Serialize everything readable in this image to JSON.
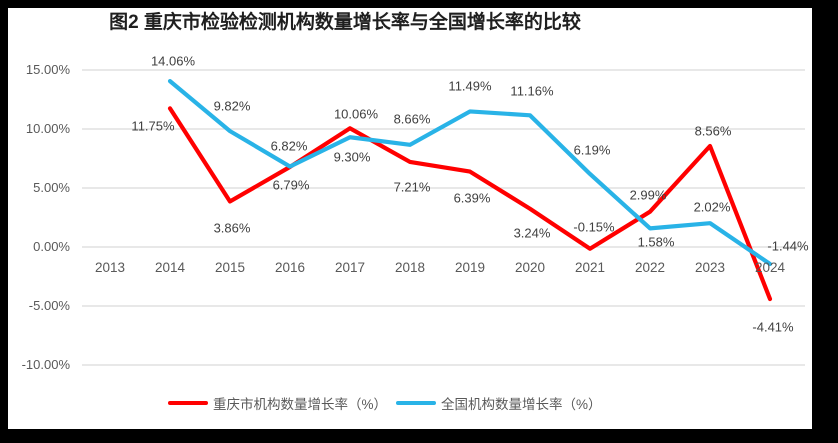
{
  "chart_data": {
    "type": "line",
    "title": "图2 重庆市检验检测机构数量增长率与全国增长率的比较",
    "categories": [
      "2013",
      "2014",
      "2015",
      "2016",
      "2017",
      "2018",
      "2019",
      "2020",
      "2021",
      "2022",
      "2023",
      "2024"
    ],
    "series": [
      {
        "name": "重庆市机构数量增长率（%）",
        "color": "#FF0000",
        "values": [
          null,
          11.75,
          3.86,
          6.79,
          10.06,
          7.21,
          6.39,
          3.24,
          -0.15,
          2.99,
          8.56,
          -4.41
        ],
        "labels": [
          null,
          "11.75%",
          "3.86%",
          "6.79%",
          "10.06%",
          "7.21%",
          "6.39%",
          "3.24%",
          "-0.15%",
          "2.99%",
          "8.56%",
          "-4.41%"
        ],
        "label_offsets": [
          null,
          [
            -17,
            18
          ],
          [
            2,
            27
          ],
          [
            1,
            18
          ],
          [
            6,
            -14
          ],
          [
            2,
            25
          ],
          [
            2,
            26
          ],
          [
            2,
            24
          ],
          [
            4,
            -22
          ],
          [
            -2,
            -17
          ],
          [
            3,
            -15
          ],
          [
            3,
            28
          ]
        ]
      },
      {
        "name": "全国机构数量增长率（%）",
        "color": "#29B3E7",
        "values": [
          null,
          14.06,
          9.82,
          6.82,
          9.3,
          8.66,
          11.49,
          11.16,
          6.19,
          1.58,
          2.02,
          -1.44
        ],
        "labels": [
          null,
          "14.06%",
          "9.82%",
          "6.82%",
          "9.30%",
          "8.66%",
          "11.49%",
          "11.16%",
          "6.19%",
          "1.58%",
          "2.02%",
          "-1.44%"
        ],
        "label_offsets": [
          null,
          [
            3,
            -20
          ],
          [
            2,
            -25
          ],
          [
            -1,
            -21
          ],
          [
            2,
            20
          ],
          [
            2,
            -26
          ],
          [
            0,
            -25
          ],
          [
            2,
            -24
          ],
          [
            2,
            -24
          ],
          [
            6,
            14
          ],
          [
            2,
            -16
          ],
          [
            18,
            -18
          ]
        ]
      }
    ],
    "y_axis": {
      "ticks": [
        "15.00%",
        "10.00%",
        "5.00%",
        "0.00%",
        "-5.00%",
        "-10.00%"
      ],
      "tick_values": [
        15,
        10,
        5,
        0,
        -5,
        -10
      ],
      "max": 15,
      "min": -10,
      "step": 5
    },
    "grid": true,
    "legend_position": "bottom",
    "colors": {
      "grid": "#D9D9D9",
      "axis_text": "#595959",
      "label_text": "#404040",
      "title_text": "#1F1F1F",
      "background": "#FFFFFF",
      "frame": "#000000"
    }
  }
}
